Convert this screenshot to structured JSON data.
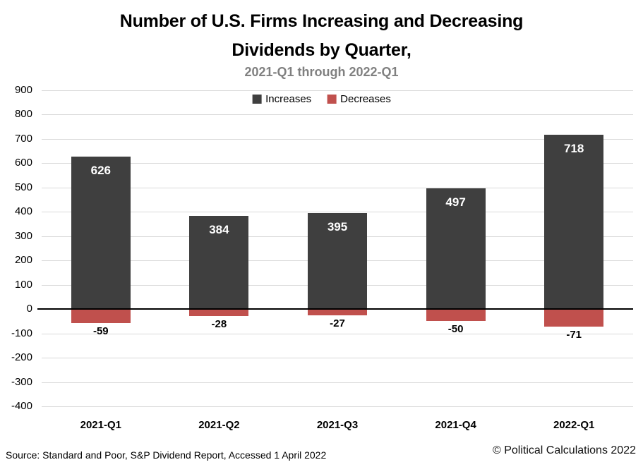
{
  "header": {
    "title_line1": "Number of U.S. Firms Increasing and Decreasing",
    "title_line2": "Dividends by Quarter,",
    "subtitle": "2021-Q1 through 2022-Q1"
  },
  "legend": {
    "increases_label": "Increases",
    "decreases_label": "Decreases"
  },
  "footer": {
    "source": "Source: Standard and Poor, S&P Dividend Report, Accessed 1 April 2022",
    "copyright": "© Political Calculations 2022"
  },
  "colors": {
    "increases": "#3F3F3F",
    "decreases": "#C0504D",
    "subtitle_text": "#808080",
    "gridline": "#D9D9D9",
    "zero_line": "#000000",
    "positive_value_label": "#FFFFFF",
    "negative_value_label": "#000000"
  },
  "chart_data": {
    "type": "bar",
    "title": "Number of U.S. Firms Increasing and Decreasing Dividends by Quarter,",
    "subtitle": "2021-Q1 through 2022-Q1",
    "categories": [
      "2021-Q1",
      "2021-Q2",
      "2021-Q3",
      "2021-Q4",
      "2022-Q1"
    ],
    "series": [
      {
        "name": "Increases",
        "color": "#3F3F3F",
        "values": [
          626,
          384,
          395,
          497,
          718
        ]
      },
      {
        "name": "Decreases",
        "color": "#C0504D",
        "values": [
          -59,
          -28,
          -27,
          -50,
          -71
        ]
      }
    ],
    "data_labels_shown": true,
    "xlabel": "",
    "ylabel": "",
    "ylim": [
      -400,
      900
    ],
    "ytick_step": 100,
    "yticks": [
      900,
      800,
      700,
      600,
      500,
      400,
      300,
      200,
      100,
      0,
      -100,
      -200,
      -300,
      -400
    ],
    "grid": true,
    "legend_position": "top-center"
  }
}
